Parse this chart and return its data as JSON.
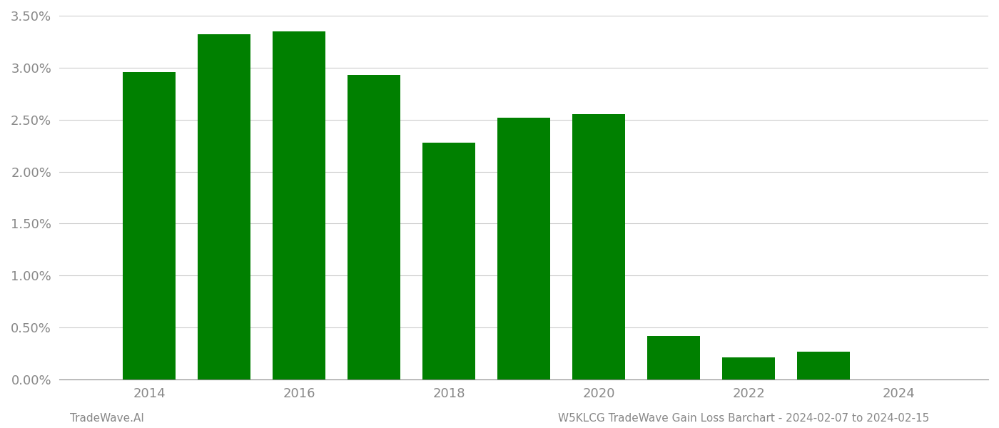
{
  "years": [
    2014,
    2015,
    2016,
    2017,
    2018,
    2019,
    2020,
    2021,
    2022,
    2023
  ],
  "values": [
    0.0296,
    0.0332,
    0.0335,
    0.0293,
    0.0228,
    0.0252,
    0.0255,
    0.0042,
    0.0021,
    0.0027
  ],
  "bar_color": "#008000",
  "background_color": "#ffffff",
  "grid_color": "#cccccc",
  "tick_color": "#888888",
  "ylim": [
    0.0,
    0.035
  ],
  "yticks": [
    0.0,
    0.005,
    0.01,
    0.015,
    0.02,
    0.025,
    0.03,
    0.035
  ],
  "xlim": [
    2012.8,
    2025.2
  ],
  "xticks": [
    2014,
    2016,
    2018,
    2020,
    2022,
    2024
  ],
  "xtick_labels": [
    "2014",
    "2016",
    "2018",
    "2020",
    "2022",
    "2024"
  ],
  "bar_width": 0.7,
  "footer_left": "TradeWave.AI",
  "footer_right": "W5KLCG TradeWave Gain Loss Barchart - 2024-02-07 to 2024-02-15",
  "footer_color": "#888888",
  "footer_fontsize": 11,
  "tick_fontsize": 13
}
